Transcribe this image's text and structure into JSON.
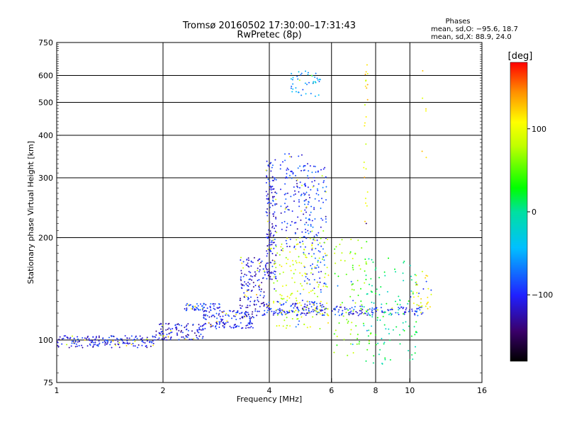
{
  "title_line1": "Tromsø 20160502 17:30:00–17:31:43",
  "title_line2": "RwPretec (8p)",
  "stats": {
    "heading": "Phases",
    "line_o": "mean, sd,O: −95.6, 18.7",
    "line_x": "mean, sd,X:  88.9, 24.0"
  },
  "colorbar": {
    "label": "[deg]",
    "ticks": [
      {
        "value": 100,
        "label": "100"
      },
      {
        "value": 0,
        "label": "0"
      },
      {
        "value": -100,
        "label": "−100"
      }
    ],
    "range": [
      -180,
      180
    ]
  },
  "chart_data": {
    "type": "scatter",
    "xlabel": "Frequency [MHz]",
    "ylabel": "Stationary phase Virtual Height [km]",
    "xscale": "log",
    "yscale": "log",
    "xlim": [
      1,
      16
    ],
    "ylim": [
      75,
      750
    ],
    "xticks": [
      1,
      2,
      4,
      6,
      8,
      10,
      16
    ],
    "yticks": [
      75,
      100,
      200,
      300,
      400,
      500,
      600,
      750
    ],
    "grid_x": [
      2,
      4,
      6,
      8,
      10
    ],
    "grid_y": [
      100,
      200,
      300,
      400,
      500,
      600
    ],
    "color_variable": "phase [deg]",
    "clusters": [
      {
        "x0": 1.0,
        "x1": 1.9,
        "y0": 95,
        "y1": 103,
        "phase": -105,
        "n": 170
      },
      {
        "x0": 1.9,
        "x1": 2.6,
        "y0": 100,
        "y1": 112,
        "phase": -110,
        "n": 110
      },
      {
        "x0": 2.3,
        "x1": 2.9,
        "y0": 122,
        "y1": 128,
        "phase": -95,
        "n": 60
      },
      {
        "x0": 2.6,
        "x1": 3.6,
        "y0": 108,
        "y1": 122,
        "phase": -105,
        "n": 140
      },
      {
        "x0": 3.3,
        "x1": 3.9,
        "y0": 115,
        "y1": 175,
        "phase": -110,
        "n": 150
      },
      {
        "x0": 3.9,
        "x1": 4.2,
        "y0": 150,
        "y1": 340,
        "phase": -105,
        "n": 150
      },
      {
        "x0": 3.9,
        "x1": 5.8,
        "y0": 118,
        "y1": 130,
        "phase": -100,
        "n": 140
      },
      {
        "x0": 4.3,
        "x1": 5.1,
        "y0": 180,
        "y1": 360,
        "phase": -100,
        "n": 110
      },
      {
        "x0": 5.0,
        "x1": 5.8,
        "y0": 140,
        "y1": 330,
        "phase": -90,
        "n": 140
      },
      {
        "x0": 4.1,
        "x1": 5.9,
        "y0": 108,
        "y1": 200,
        "phase": 90,
        "n": 170
      },
      {
        "x0": 4.6,
        "x1": 5.6,
        "y0": 520,
        "y1": 620,
        "phase": -60,
        "n": 45
      },
      {
        "x0": 6.1,
        "x1": 7.8,
        "y0": 90,
        "y1": 200,
        "phase": 60,
        "n": 90
      },
      {
        "x0": 6.0,
        "x1": 10.8,
        "y0": 118,
        "y1": 126,
        "phase": -95,
        "n": 110
      },
      {
        "x0": 7.4,
        "x1": 10.5,
        "y0": 85,
        "y1": 175,
        "phase": 10,
        "n": 110
      },
      {
        "x0": 7.4,
        "x1": 7.6,
        "y0": 220,
        "y1": 650,
        "phase": 110,
        "n": 25
      },
      {
        "x0": 10.0,
        "x1": 11.5,
        "y0": 120,
        "y1": 160,
        "phase": 100,
        "n": 35
      },
      {
        "x0": 10.8,
        "x1": 11.2,
        "y0": 300,
        "y1": 640,
        "phase": 120,
        "n": 6
      }
    ]
  }
}
